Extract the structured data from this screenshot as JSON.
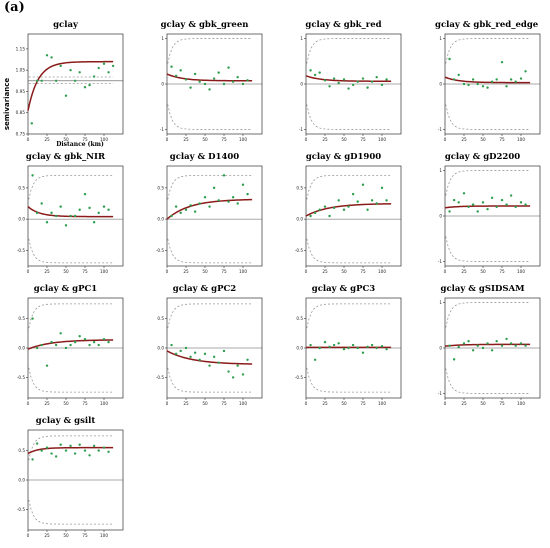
{
  "figure": {
    "panel_label": "(a)",
    "ylabel": "semivariance",
    "xlabel": "Distance (km)"
  },
  "colors": {
    "model": "#8b1a1a",
    "points": "#2e9e4e",
    "envelope": "#999999",
    "frame": "#333333",
    "zero": "#555555"
  },
  "chart_data": [
    {
      "type": "scatter",
      "title": "gclay",
      "variogram": "direct",
      "xlim": [
        0,
        125
      ],
      "ylim": [
        0.75,
        1.22
      ],
      "xticks": [
        0,
        25,
        50,
        75,
        100
      ],
      "yticks": [
        0.75,
        0.85,
        0.95,
        1.05,
        1.15
      ],
      "ytick_labels": [
        "0.75",
        "0.85",
        "0.95",
        "1.05",
        "1.15"
      ],
      "points": {
        "x": [
          5,
          12,
          18,
          25,
          31,
          37,
          43,
          50,
          56,
          62,
          68,
          75,
          81,
          87,
          93,
          100,
          106,
          112
        ],
        "y": [
          0.8,
          1.0,
          1.0,
          1.12,
          1.11,
          1.0,
          1.07,
          0.93,
          1.05,
          1.0,
          1.04,
          0.97,
          0.98,
          1.02,
          1.06,
          1.08,
          1.04,
          1.07
        ]
      },
      "model": {
        "nugget": 0.86,
        "sill": 1.09,
        "range": 40
      },
      "envelope": {
        "upper": 1.03,
        "lower": 0.98,
        "center": 1.0
      }
    },
    {
      "type": "scatter",
      "title": "gclay & gbk_green",
      "variogram": "cross",
      "xlim": [
        0,
        125
      ],
      "ylim": [
        -1.1,
        1.1
      ],
      "xticks": [
        0,
        25,
        50,
        75,
        100
      ],
      "yticks": [
        -1,
        0,
        1
      ],
      "ytick_labels": [
        "-1",
        "0",
        "1"
      ],
      "points": {
        "x": [
          6,
          12,
          18,
          25,
          31,
          37,
          43,
          50,
          56,
          62,
          68,
          75,
          81,
          87,
          93,
          100,
          106
        ],
        "y": [
          0.38,
          0.18,
          0.3,
          0.1,
          -0.08,
          0.22,
          0.05,
          0.0,
          -0.12,
          0.12,
          0.25,
          0.0,
          0.36,
          0.05,
          0.15,
          0.0,
          0.08
        ]
      },
      "model": {
        "nugget": 0.22,
        "sill": 0.07,
        "range": 60
      },
      "envelope": {
        "upper": 1.0,
        "lower": -1.0,
        "center": 0.0
      }
    },
    {
      "type": "scatter",
      "title": "gclay & gbk_red",
      "variogram": "cross",
      "xlim": [
        0,
        125
      ],
      "ylim": [
        -1.1,
        1.1
      ],
      "xticks": [
        0,
        25,
        50,
        75,
        100
      ],
      "yticks": [
        -1,
        0,
        1
      ],
      "ytick_labels": [
        "-1",
        "0",
        "1"
      ],
      "points": {
        "x": [
          6,
          12,
          18,
          25,
          31,
          37,
          43,
          50,
          56,
          62,
          68,
          75,
          81,
          87,
          93,
          100,
          106
        ],
        "y": [
          0.3,
          0.2,
          0.25,
          0.08,
          -0.05,
          0.12,
          0.02,
          0.1,
          -0.1,
          -0.02,
          0.05,
          0.12,
          -0.08,
          0.05,
          0.15,
          -0.02,
          0.1
        ]
      },
      "model": {
        "nugget": 0.18,
        "sill": 0.06,
        "range": 60
      },
      "envelope": {
        "upper": 1.0,
        "lower": -1.0,
        "center": 0.0
      }
    },
    {
      "type": "scatter",
      "title": "gclay & gbk_red_edge",
      "variogram": "cross",
      "xlim": [
        0,
        125
      ],
      "ylim": [
        -1.1,
        1.1
      ],
      "xticks": [
        0,
        25,
        50,
        75,
        100
      ],
      "yticks": [
        -1,
        0,
        1
      ],
      "ytick_labels": [
        "-1",
        "0",
        "1"
      ],
      "points": {
        "x": [
          6,
          12,
          18,
          25,
          31,
          37,
          43,
          50,
          56,
          62,
          68,
          75,
          81,
          87,
          93,
          100,
          106
        ],
        "y": [
          0.55,
          0.1,
          0.2,
          0.0,
          -0.02,
          0.1,
          0.0,
          -0.05,
          -0.08,
          0.05,
          0.1,
          0.48,
          -0.05,
          0.1,
          0.05,
          0.12,
          0.28
        ]
      },
      "model": {
        "nugget": 0.15,
        "sill": 0.03,
        "range": 55
      },
      "envelope": {
        "upper": 1.0,
        "lower": -1.0,
        "center": 0.0
      }
    },
    {
      "type": "scatter",
      "title": "gclay & gbk_NIR",
      "variogram": "cross",
      "xlim": [
        0,
        125
      ],
      "ylim": [
        -0.75,
        0.85
      ],
      "xticks": [
        0,
        25,
        50,
        75,
        100
      ],
      "yticks": [
        -0.5,
        0,
        0.5
      ],
      "ytick_labels": [
        "-0.5",
        "0.0",
        "0.5"
      ],
      "points": {
        "x": [
          6,
          12,
          18,
          25,
          31,
          37,
          43,
          50,
          56,
          62,
          68,
          75,
          81,
          87,
          93,
          100,
          106
        ],
        "y": [
          0.7,
          0.1,
          0.25,
          -0.05,
          0.1,
          0.05,
          0.2,
          -0.1,
          0.05,
          0.05,
          0.15,
          0.4,
          0.18,
          -0.05,
          0.1,
          0.2,
          0.15
        ]
      },
      "model": {
        "nugget": 0.2,
        "sill": 0.04,
        "range": 45
      },
      "envelope": {
        "upper": 0.7,
        "lower": -0.7,
        "center": 0.0
      }
    },
    {
      "type": "scatter",
      "title": "gclay & D1400",
      "variogram": "cross",
      "xlim": [
        0,
        125
      ],
      "ylim": [
        -0.75,
        0.85
      ],
      "xticks": [
        0,
        25,
        50,
        75,
        100
      ],
      "yticks": [
        -0.5,
        0,
        0.5
      ],
      "ytick_labels": [
        "-0.5",
        "0.0",
        "0.5"
      ],
      "points": {
        "x": [
          6,
          12,
          18,
          25,
          31,
          37,
          43,
          50,
          56,
          62,
          68,
          75,
          81,
          87,
          93,
          100,
          106
        ],
        "y": [
          0.05,
          0.2,
          0.1,
          0.15,
          0.22,
          0.12,
          0.25,
          0.35,
          0.2,
          0.5,
          0.3,
          0.7,
          0.28,
          0.35,
          0.25,
          0.55,
          0.4
        ]
      },
      "model": {
        "nugget": 0.0,
        "sill": 0.32,
        "range": 90
      },
      "envelope": {
        "upper": 0.7,
        "lower": -0.7,
        "center": 0.0
      }
    },
    {
      "type": "scatter",
      "title": "gclay & gD1900",
      "variogram": "cross",
      "xlim": [
        0,
        125
      ],
      "ylim": [
        -0.75,
        0.85
      ],
      "xticks": [
        0,
        25,
        50,
        75,
        100
      ],
      "yticks": [
        -0.5,
        0,
        0.5
      ],
      "ytick_labels": [
        "-0.5",
        "0.0",
        "0.5"
      ],
      "points": {
        "x": [
          6,
          12,
          18,
          25,
          31,
          37,
          43,
          50,
          56,
          62,
          68,
          75,
          81,
          87,
          93,
          100,
          106
        ],
        "y": [
          0.05,
          0.1,
          0.15,
          0.2,
          0.05,
          0.18,
          0.3,
          0.15,
          0.2,
          0.4,
          0.28,
          0.55,
          0.15,
          0.3,
          0.25,
          0.5,
          0.3
        ]
      },
      "model": {
        "nugget": 0.05,
        "sill": 0.25,
        "range": 90
      },
      "envelope": {
        "upper": 0.7,
        "lower": -0.7,
        "center": 0.0
      }
    },
    {
      "type": "scatter",
      "title": "gclay & gD2200",
      "variogram": "cross",
      "xlim": [
        0,
        125
      ],
      "ylim": [
        -1.1,
        1.1
      ],
      "xticks": [
        0,
        25,
        50,
        75,
        100
      ],
      "yticks": [
        -1,
        0,
        1
      ],
      "ytick_labels": [
        "-1",
        "0",
        "1"
      ],
      "points": {
        "x": [
          6,
          12,
          18,
          25,
          31,
          37,
          43,
          50,
          56,
          62,
          68,
          75,
          81,
          87,
          93,
          100,
          106
        ],
        "y": [
          0.1,
          0.35,
          0.3,
          0.5,
          0.2,
          0.25,
          0.1,
          0.3,
          0.15,
          0.4,
          0.2,
          0.35,
          0.25,
          0.45,
          0.2,
          0.3,
          0.25
        ]
      },
      "model": {
        "nugget": 0.18,
        "sill": 0.22,
        "range": 50
      },
      "envelope": {
        "upper": 1.0,
        "lower": -1.0,
        "center": 0.0
      }
    },
    {
      "type": "scatter",
      "title": "gclay & gPC1",
      "variogram": "cross",
      "xlim": [
        0,
        125
      ],
      "ylim": [
        -0.85,
        0.85
      ],
      "xticks": [
        0,
        25,
        50,
        75,
        100
      ],
      "yticks": [
        -0.5,
        0,
        0.5
      ],
      "ytick_labels": [
        "-0.5",
        "0.0",
        "0.5"
      ],
      "points": {
        "x": [
          6,
          12,
          18,
          25,
          31,
          37,
          43,
          50,
          56,
          62,
          68,
          75,
          81,
          87,
          93,
          100,
          106
        ],
        "y": [
          0.5,
          0.0,
          0.05,
          -0.3,
          0.1,
          0.05,
          0.25,
          0.0,
          0.05,
          0.1,
          0.2,
          0.15,
          0.05,
          0.1,
          0.05,
          0.15,
          0.1
        ]
      },
      "model": {
        "nugget": -0.02,
        "sill": 0.14,
        "range": 90
      },
      "envelope": {
        "upper": 0.75,
        "lower": -0.75,
        "center": 0.0
      }
    },
    {
      "type": "scatter",
      "title": "gclay & gPC2",
      "variogram": "cross",
      "xlim": [
        0,
        125
      ],
      "ylim": [
        -0.85,
        0.85
      ],
      "xticks": [
        0,
        25,
        50,
        75,
        100
      ],
      "yticks": [
        -0.5,
        0,
        0.5
      ],
      "ytick_labels": [
        "-0.5",
        "0.0",
        "0.5"
      ],
      "points": {
        "x": [
          6,
          12,
          18,
          25,
          31,
          37,
          43,
          50,
          56,
          62,
          68,
          75,
          81,
          87,
          93,
          100,
          106
        ],
        "y": [
          0.05,
          -0.1,
          -0.05,
          0.0,
          -0.15,
          -0.08,
          -0.2,
          -0.1,
          -0.3,
          -0.15,
          -0.25,
          -0.05,
          -0.4,
          -0.5,
          -0.3,
          -0.45,
          -0.2
        ]
      },
      "model": {
        "nugget": -0.05,
        "sill": -0.28,
        "range": 100
      },
      "envelope": {
        "upper": 0.75,
        "lower": -0.75,
        "center": 0.0
      }
    },
    {
      "type": "scatter",
      "title": "gclay & gPC3",
      "variogram": "cross",
      "xlim": [
        0,
        125
      ],
      "ylim": [
        -0.85,
        0.85
      ],
      "xticks": [
        0,
        25,
        50,
        75,
        100
      ],
      "yticks": [
        -0.5,
        0,
        0.5
      ],
      "ytick_labels": [
        "-0.5",
        "0.0",
        "0.5"
      ],
      "points": {
        "x": [
          6,
          12,
          18,
          25,
          31,
          37,
          43,
          50,
          56,
          62,
          68,
          75,
          81,
          87,
          93,
          100,
          106
        ],
        "y": [
          0.05,
          -0.2,
          0.0,
          0.1,
          0.02,
          0.05,
          0.08,
          -0.02,
          0.0,
          0.05,
          0.0,
          -0.08,
          0.02,
          0.05,
          0.0,
          0.03,
          -0.02
        ]
      },
      "model": {
        "nugget": 0.01,
        "sill": 0.01,
        "range": 40
      },
      "envelope": {
        "upper": 0.75,
        "lower": -0.75,
        "center": 0.0
      }
    },
    {
      "type": "scatter",
      "title": "gclay & gSIDSAM",
      "variogram": "cross",
      "xlim": [
        0,
        125
      ],
      "ylim": [
        -1.1,
        1.1
      ],
      "xticks": [
        0,
        25,
        50,
        75,
        100
      ],
      "yticks": [
        -1,
        0,
        1
      ],
      "ytick_labels": [
        "-1",
        "0",
        "1"
      ],
      "points": {
        "x": [
          6,
          12,
          18,
          25,
          31,
          37,
          43,
          50,
          56,
          62,
          68,
          75,
          81,
          87,
          93,
          100,
          106
        ],
        "y": [
          0.05,
          -0.25,
          0.02,
          0.1,
          0.15,
          -0.05,
          0.05,
          0.0,
          0.1,
          -0.05,
          0.15,
          0.05,
          0.2,
          0.1,
          0.05,
          0.1,
          0.05
        ]
      },
      "model": {
        "nugget": 0.04,
        "sill": 0.08,
        "range": 60
      },
      "envelope": {
        "upper": 1.0,
        "lower": -1.0,
        "center": 0.0
      }
    },
    {
      "type": "scatter",
      "title": "gclay & gsilt",
      "variogram": "cross",
      "xlim": [
        0,
        125
      ],
      "ylim": [
        -0.85,
        0.85
      ],
      "xticks": [
        0,
        25,
        50,
        75,
        100
      ],
      "yticks": [
        -0.5,
        0,
        0.5
      ],
      "ytick_labels": [
        "-0.5",
        "0.0",
        "0.5"
      ],
      "points": {
        "x": [
          6,
          12,
          18,
          25,
          31,
          37,
          43,
          50,
          56,
          62,
          68,
          75,
          81,
          87,
          93,
          100,
          106
        ],
        "y": [
          0.35,
          0.62,
          0.5,
          0.55,
          0.45,
          0.4,
          0.6,
          0.5,
          0.58,
          0.45,
          0.6,
          0.5,
          0.42,
          0.58,
          0.5,
          0.55,
          0.48
        ]
      },
      "model": {
        "nugget": 0.45,
        "sill": 0.55,
        "range": 40
      },
      "envelope": {
        "upper": 0.75,
        "lower": -0.75,
        "center": 0.0
      }
    }
  ]
}
